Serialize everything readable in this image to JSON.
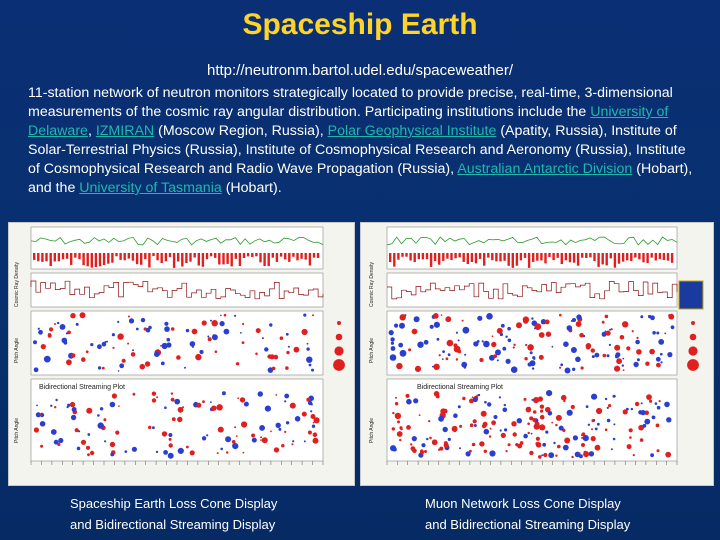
{
  "title": "Spaceship Earth",
  "url": "http://neutronm.bartol.udel.edu/spaceweather/",
  "description": {
    "t1": "11-station network of neutron monitors strategically located to provide precise, real-time, 3-dimensional measurements of the cosmic ray angular distribution. Participating institutions include the ",
    "link1": "University of Delaware",
    "t2": ", ",
    "link2": "IZMIRAN",
    "t3": " (Moscow Region, Russia), ",
    "link3": "Polar Geophysical Institute",
    "t4": " (Apatity, Russia), Institute of Solar-Terrestrial Physics (Russia), Institute of Cosmophysical Research and Aeronomy (Russia), Institute of Cosmophysical Research and Radio Wave Propagation (Russia), ",
    "link4": "Australian Antarctic Division",
    "t5": " (Hobart), and the ",
    "link5": "University of Tasmania",
    "t6": " (Hobart)."
  },
  "left_panel": {
    "bidirectional_label": "Bidirectional Streaming Plot",
    "axis_labels": [
      "Cosmic Ray Density",
      "Pitch Angle",
      "Pitch Angle"
    ],
    "caption_line1": "Spaceship Earth Loss Cone Display",
    "caption_line2": "and Bidirectional Streaming Display"
  },
  "right_panel": {
    "bidirectional_label": "Bidirectional Streaming Plot",
    "axis_labels": [
      "Cosmic Ray Density",
      "Pitch Angle",
      "Pitch Angle"
    ],
    "caption_line1": "Muon Network Loss Cone Display",
    "caption_line2": "and Bidirectional Streaming Display"
  },
  "colors": {
    "title": "#ffd428",
    "link": "#1fb8ad",
    "background": "#08306e",
    "increase_red": "#e0201e",
    "decrease_blue": "#2a3fd0",
    "field_green": "#2a9a2a"
  }
}
